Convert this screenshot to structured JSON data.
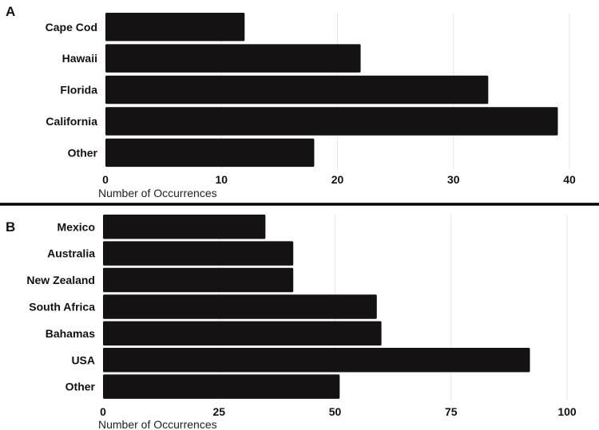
{
  "colors": {
    "bar": "#141212",
    "grid": "#e6e6e6",
    "divider": "#000000",
    "text": "#111111"
  },
  "chart_data": [
    {
      "panel": "A",
      "type": "bar",
      "orientation": "horizontal",
      "categories": [
        "Cape Cod",
        "Hawaii",
        "Florida",
        "California",
        "Other"
      ],
      "values": [
        12,
        22,
        33,
        39,
        18
      ],
      "xlabel": "Number of Occurrences",
      "xlim": [
        0,
        40
      ],
      "xticks": [
        0,
        10,
        20,
        30,
        40
      ],
      "grid": "vertical"
    },
    {
      "panel": "B",
      "type": "bar",
      "orientation": "horizontal",
      "categories": [
        "Mexico",
        "Australia",
        "New Zealand",
        "South Africa",
        "Bahamas",
        "USA",
        "Other"
      ],
      "values": [
        35,
        41,
        41,
        59,
        60,
        92,
        51
      ],
      "xlabel": "Number of Occurrences",
      "xlim": [
        0,
        100
      ],
      "xticks": [
        0,
        25,
        50,
        75,
        100
      ],
      "grid": "vertical"
    }
  ]
}
